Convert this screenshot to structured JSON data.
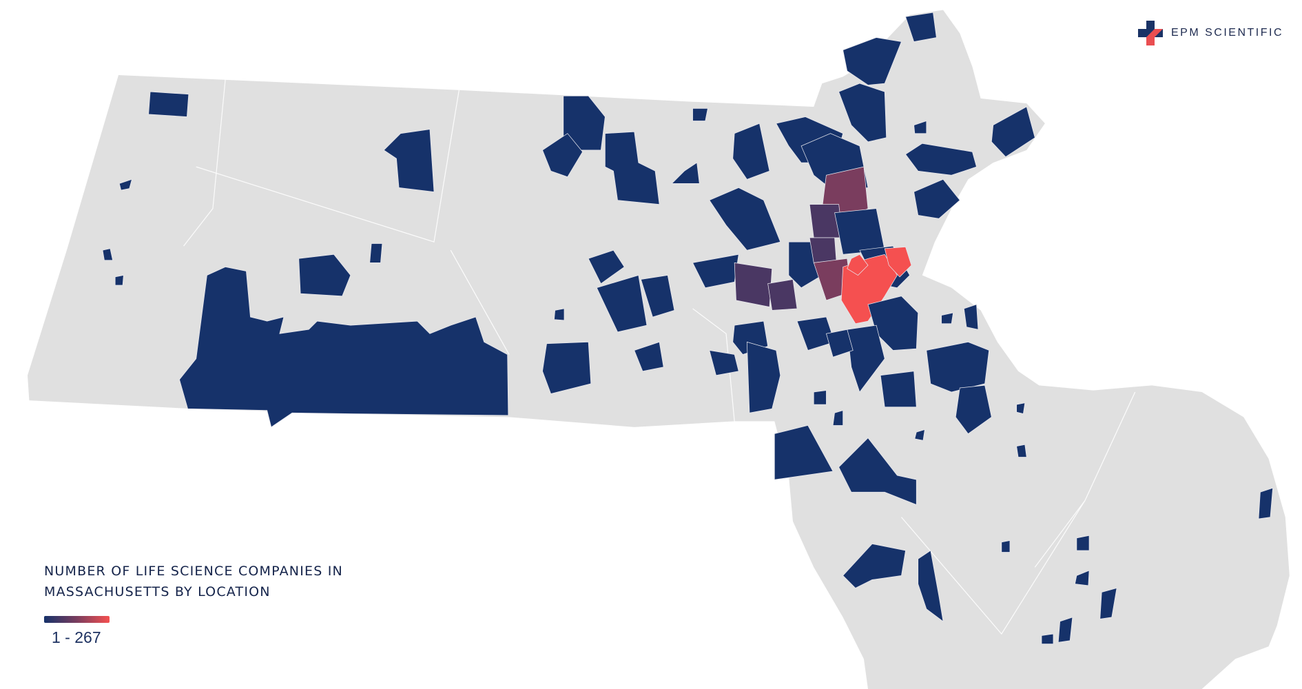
{
  "brand": {
    "name": "EPM SCIENTIFIC",
    "icon": "plus-cross-logo-icon"
  },
  "legend": {
    "title_line1": "NUMBER OF LIFE SCIENCE COMPANIES IN",
    "title_line2": "MASSACHUSETTS BY LOCATION",
    "range": "1 - 267",
    "min": 1,
    "max": 267
  },
  "colors": {
    "state_fill": "#e0e0e0",
    "boundary": "#ffffff",
    "low": "#16326a",
    "mid": "#7a3d5e",
    "high": "#f55050",
    "text": "#14234a"
  }
}
